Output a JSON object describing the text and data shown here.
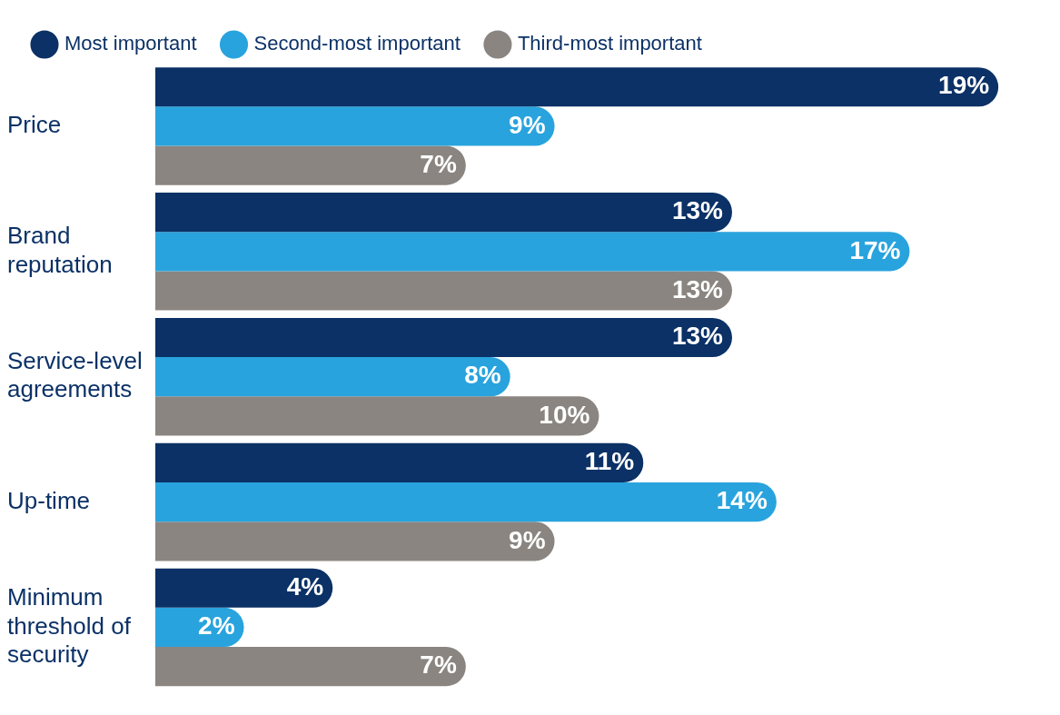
{
  "chart_data": {
    "type": "bar",
    "orientation": "horizontal",
    "legend": "top left",
    "categories": [
      "Price",
      "Brand reputation",
      "Service-level agreements",
      "Up-time",
      "Minimum threshold of security"
    ],
    "series": [
      {
        "name": "Most important",
        "color": "#0b3166",
        "values": [
          19,
          13,
          13,
          11,
          4
        ],
        "value_labels": [
          "19%",
          "13%",
          "13%",
          "11%",
          "4%"
        ]
      },
      {
        "name": "Second-most important",
        "color": "#29a3dd",
        "values": [
          9,
          17,
          8,
          14,
          2
        ],
        "value_labels": [
          "9%",
          "17%",
          "8%",
          "14%",
          "2%"
        ]
      },
      {
        "name": "Third-most important",
        "color": "#8a8580",
        "values": [
          7,
          13,
          10,
          9,
          7
        ],
        "value_labels": [
          "7%",
          "13%",
          "10%",
          "9%",
          "7%"
        ]
      }
    ]
  }
}
